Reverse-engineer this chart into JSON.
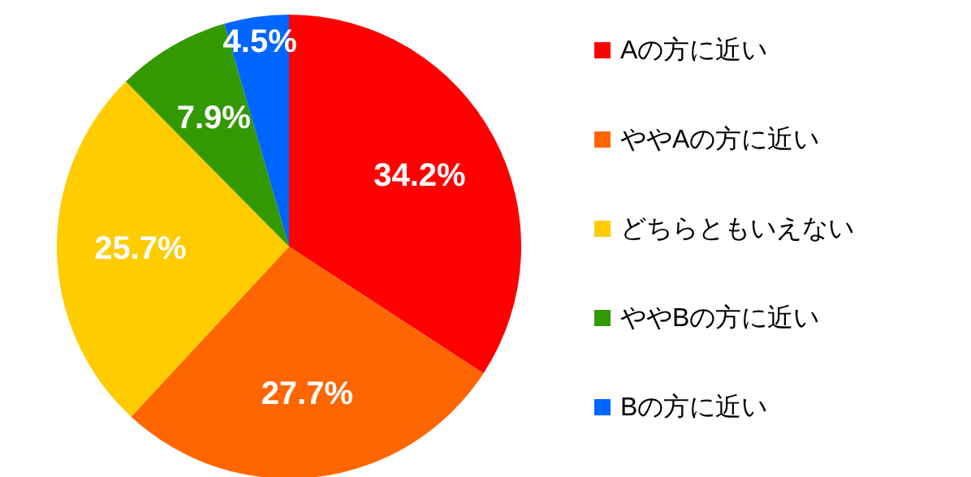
{
  "chart_data": {
    "type": "pie",
    "categories": [
      "Aの方に近い",
      "ややAの方に近い",
      "どちらともいえない",
      "ややBの方に近い",
      "Bの方に近い"
    ],
    "values": [
      34.2,
      27.7,
      25.7,
      7.9,
      4.5
    ],
    "colors": [
      "#ff0000",
      "#ff6600",
      "#ffcc00",
      "#339900",
      "#0066ff"
    ],
    "value_labels": [
      "34.2%",
      "27.7%",
      "25.7%",
      "7.9%",
      "4.5%"
    ],
    "legend": "right"
  }
}
